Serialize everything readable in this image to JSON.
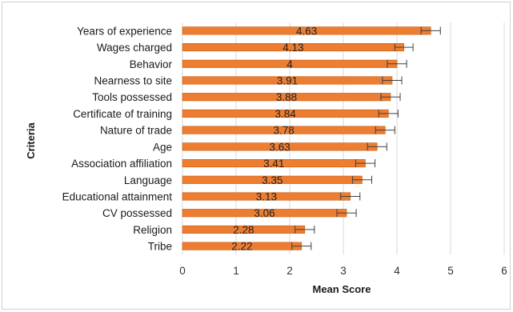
{
  "chart_data": {
    "type": "bar",
    "orientation": "horizontal",
    "categories": [
      "Years of experience",
      "Wages charged",
      "Behavior",
      "Nearness to site",
      "Tools possessed",
      "Certificate of training",
      "Nature of trade",
      "Age",
      "Association affiliation",
      "Language",
      "Educational attainment",
      "CV possessed",
      "Religion",
      "Tribe"
    ],
    "values": [
      4.63,
      4.13,
      4,
      3.91,
      3.88,
      3.84,
      3.78,
      3.63,
      3.41,
      3.35,
      3.13,
      3.06,
      2.28,
      2.22
    ],
    "value_labels": [
      "4.63",
      "4.13",
      "4",
      "3.91",
      "3.88",
      "3.84",
      "3.78",
      "3.63",
      "3.41",
      "3.35",
      "3.13",
      "3.06",
      "2.28",
      "2.22"
    ],
    "error_bars": [
      0.18,
      0.17,
      0.18,
      0.18,
      0.18,
      0.18,
      0.18,
      0.18,
      0.18,
      0.18,
      0.18,
      0.18,
      0.18,
      0.18
    ],
    "xlabel": "Mean Score",
    "ylabel": "Criteria",
    "xlim": [
      0,
      6
    ],
    "xticks": [
      "0",
      "1",
      "2",
      "3",
      "4",
      "5",
      "6"
    ],
    "grid": "vertical",
    "legend": "none",
    "colors": {
      "bar_fill": "#ed7d31",
      "bar_stroke": "#c55a11",
      "gridline": "#d9d9d9",
      "error_bar": "#404040"
    }
  }
}
